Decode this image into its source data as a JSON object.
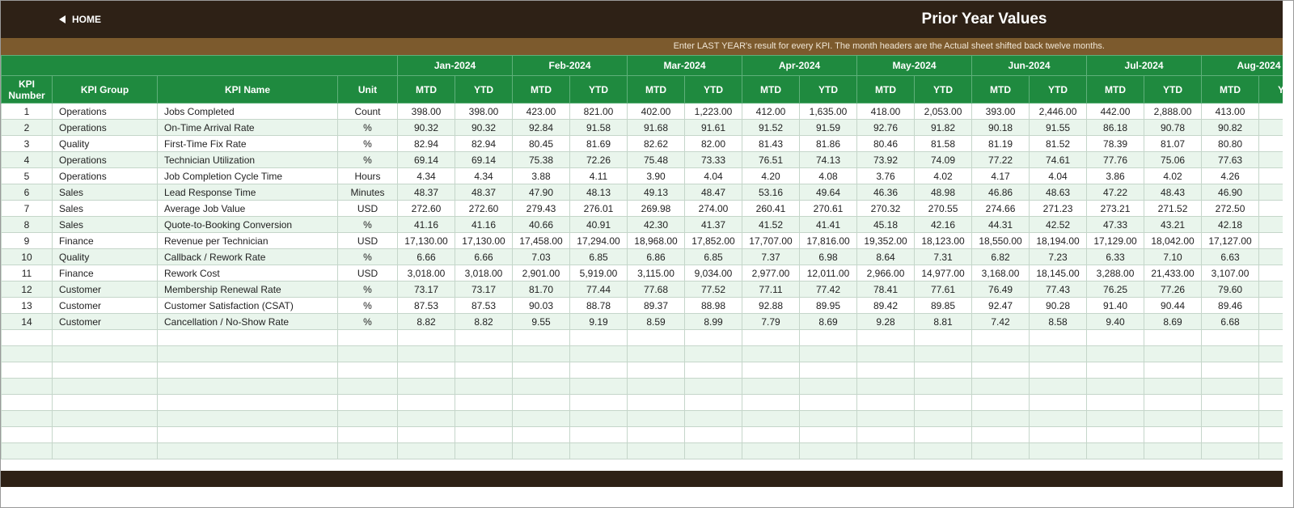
{
  "header": {
    "home": "HOME",
    "title": "Prior Year Values",
    "note": "Enter LAST YEAR's result for every KPI. The month headers are the Actual sheet shifted back twelve months."
  },
  "table": {
    "columns": [
      "KPI Number",
      "KPI Group",
      "KPI Name",
      "Unit"
    ],
    "months": [
      "Jan-2024",
      "Feb-2024",
      "Mar-2024",
      "Apr-2024",
      "May-2024",
      "Jun-2024",
      "Jul-2024",
      "Aug-2024"
    ],
    "sub": [
      "MTD",
      "YTD"
    ],
    "rows": [
      [
        "1",
        "Operations",
        "Jobs Completed",
        "Count",
        "398.00",
        "398.00",
        "423.00",
        "821.00",
        "402.00",
        "1,223.00",
        "412.00",
        "1,635.00",
        "418.00",
        "2,053.00",
        "393.00",
        "2,446.00",
        "442.00",
        "2,888.00",
        "413.00"
      ],
      [
        "2",
        "Operations",
        "On-Time Arrival Rate",
        "%",
        "90.32",
        "90.32",
        "92.84",
        "91.58",
        "91.68",
        "91.61",
        "91.52",
        "91.59",
        "92.76",
        "91.82",
        "90.18",
        "91.55",
        "86.18",
        "90.78",
        "90.82"
      ],
      [
        "3",
        "Quality",
        "First-Time Fix Rate",
        "%",
        "82.94",
        "82.94",
        "80.45",
        "81.69",
        "82.62",
        "82.00",
        "81.43",
        "81.86",
        "80.46",
        "81.58",
        "81.19",
        "81.52",
        "78.39",
        "81.07",
        "80.80"
      ],
      [
        "4",
        "Operations",
        "Technician Utilization",
        "%",
        "69.14",
        "69.14",
        "75.38",
        "72.26",
        "75.48",
        "73.33",
        "76.51",
        "74.13",
        "73.92",
        "74.09",
        "77.22",
        "74.61",
        "77.76",
        "75.06",
        "77.63"
      ],
      [
        "5",
        "Operations",
        "Job Completion Cycle Time",
        "Hours",
        "4.34",
        "4.34",
        "3.88",
        "4.11",
        "3.90",
        "4.04",
        "4.20",
        "4.08",
        "3.76",
        "4.02",
        "4.17",
        "4.04",
        "3.86",
        "4.02",
        "4.26"
      ],
      [
        "6",
        "Sales",
        "Lead Response Time",
        "Minutes",
        "48.37",
        "48.37",
        "47.90",
        "48.13",
        "49.13",
        "48.47",
        "53.16",
        "49.64",
        "46.36",
        "48.98",
        "46.86",
        "48.63",
        "47.22",
        "48.43",
        "46.90"
      ],
      [
        "7",
        "Sales",
        "Average Job Value",
        "USD",
        "272.60",
        "272.60",
        "279.43",
        "276.01",
        "269.98",
        "274.00",
        "260.41",
        "270.61",
        "270.32",
        "270.55",
        "274.66",
        "271.23",
        "273.21",
        "271.52",
        "272.50"
      ],
      [
        "8",
        "Sales",
        "Quote-to-Booking Conversion",
        "%",
        "41.16",
        "41.16",
        "40.66",
        "40.91",
        "42.30",
        "41.37",
        "41.52",
        "41.41",
        "45.18",
        "42.16",
        "44.31",
        "42.52",
        "47.33",
        "43.21",
        "42.18"
      ],
      [
        "9",
        "Finance",
        "Revenue per Technician",
        "USD",
        "17,130.00",
        "17,130.00",
        "17,458.00",
        "17,294.00",
        "18,968.00",
        "17,852.00",
        "17,707.00",
        "17,816.00",
        "19,352.00",
        "18,123.00",
        "18,550.00",
        "18,194.00",
        "17,129.00",
        "18,042.00",
        "17,127.00"
      ],
      [
        "10",
        "Quality",
        "Callback / Rework Rate",
        "%",
        "6.66",
        "6.66",
        "7.03",
        "6.85",
        "6.86",
        "6.85",
        "7.37",
        "6.98",
        "8.64",
        "7.31",
        "6.82",
        "7.23",
        "6.33",
        "7.10",
        "6.63"
      ],
      [
        "11",
        "Finance",
        "Rework Cost",
        "USD",
        "3,018.00",
        "3,018.00",
        "2,901.00",
        "5,919.00",
        "3,115.00",
        "9,034.00",
        "2,977.00",
        "12,011.00",
        "2,966.00",
        "14,977.00",
        "3,168.00",
        "18,145.00",
        "3,288.00",
        "21,433.00",
        "3,107.00"
      ],
      [
        "12",
        "Customer",
        "Membership Renewal Rate",
        "%",
        "73.17",
        "73.17",
        "81.70",
        "77.44",
        "77.68",
        "77.52",
        "77.11",
        "77.42",
        "78.41",
        "77.61",
        "76.49",
        "77.43",
        "76.25",
        "77.26",
        "79.60"
      ],
      [
        "13",
        "Customer",
        "Customer Satisfaction (CSAT)",
        "%",
        "87.53",
        "87.53",
        "90.03",
        "88.78",
        "89.37",
        "88.98",
        "92.88",
        "89.95",
        "89.42",
        "89.85",
        "92.47",
        "90.28",
        "91.40",
        "90.44",
        "89.46"
      ],
      [
        "14",
        "Customer",
        "Cancellation / No-Show Rate",
        "%",
        "8.82",
        "8.82",
        "9.55",
        "9.19",
        "8.59",
        "8.99",
        "7.79",
        "8.69",
        "9.28",
        "8.81",
        "7.42",
        "8.58",
        "9.40",
        "8.69",
        "6.68"
      ]
    ]
  }
}
